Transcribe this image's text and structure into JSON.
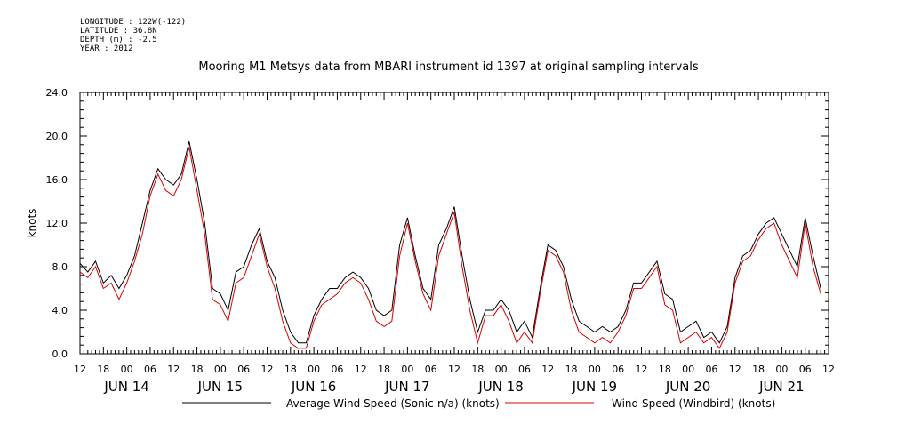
{
  "header": {
    "lines": [
      "LONGITUDE : 122W(-122)",
      "LATITUDE : 36.8N",
      "DEPTH (m) : -2.5",
      "YEAR : 2012"
    ],
    "title": "Mooring M1 Metsys data from MBARI instrument id 1397 at original sampling intervals"
  },
  "chart_data": {
    "type": "line",
    "title": "Mooring M1 Metsys data from MBARI instrument id 1397 at original sampling intervals",
    "ylabel": "knots",
    "xlabel": "",
    "ylim": [
      0,
      24
    ],
    "xlim_hours_from_jun14_00": [
      -12,
      180
    ],
    "y_ticks": [
      "0.0",
      "4.0",
      "8.0",
      "12.0",
      "16.0",
      "20.0",
      "24.0"
    ],
    "x_hour_ticks": [
      "12",
      "18",
      "00",
      "06",
      "12",
      "18",
      "00",
      "06",
      "12",
      "18",
      "00",
      "06",
      "12",
      "18",
      "00",
      "06",
      "12",
      "18",
      "00",
      "06",
      "12",
      "18",
      "00",
      "06",
      "12",
      "18",
      "00",
      "06",
      "12",
      "18",
      "00",
      "06",
      "12"
    ],
    "x_day_labels": [
      "JUN 14",
      "JUN 15",
      "JUN 16",
      "JUN 17",
      "JUN 18",
      "JUN 19",
      "JUN 20",
      "JUN 21"
    ],
    "grid": false,
    "legend_position": "bottom",
    "series": [
      {
        "name": "Average Wind Speed (Sonic-n/a) (knots)",
        "color": "#000000",
        "x": [
          -12,
          -10,
          -8,
          -6,
          -4,
          -2,
          0,
          2,
          4,
          6,
          8,
          10,
          12,
          14,
          16,
          18,
          20,
          22,
          24,
          26,
          28,
          30,
          32,
          34,
          36,
          38,
          40,
          42,
          44,
          46,
          48,
          50,
          52,
          54,
          56,
          58,
          60,
          62,
          64,
          66,
          68,
          70,
          72,
          74,
          76,
          78,
          80,
          82,
          84,
          86,
          88,
          90,
          92,
          94,
          96,
          98,
          100,
          102,
          104,
          106,
          108,
          110,
          112,
          114,
          116,
          118,
          120,
          122,
          124,
          126,
          128,
          130,
          132,
          134,
          136,
          138,
          140,
          142,
          144,
          146,
          148,
          150,
          152,
          154,
          156,
          158,
          160,
          162,
          164,
          166,
          168,
          170,
          172,
          174,
          176,
          178
        ],
        "values": [
          8.3,
          7.5,
          8.5,
          6.5,
          7.2,
          6.0,
          7.2,
          9.0,
          12.0,
          15.0,
          17.0,
          16.0,
          15.5,
          16.5,
          19.5,
          16.0,
          12.0,
          6.0,
          5.5,
          4.0,
          7.5,
          8.0,
          10.0,
          11.5,
          8.5,
          7.0,
          4.0,
          2.0,
          1.0,
          1.0,
          3.5,
          5.0,
          6.0,
          6.0,
          7.0,
          7.5,
          7.0,
          6.0,
          4.0,
          3.5,
          4.0,
          10.0,
          12.5,
          9.0,
          6.0,
          5.0,
          10.0,
          11.5,
          13.5,
          9.0,
          5.0,
          2.0,
          4.0,
          4.0,
          5.0,
          4.0,
          2.0,
          3.0,
          1.5,
          6.0,
          10.0,
          9.5,
          8.0,
          5.0,
          3.0,
          2.5,
          2.0,
          2.5,
          2.0,
          2.5,
          4.0,
          6.5,
          6.5,
          7.5,
          8.5,
          5.5,
          5.0,
          2.0,
          2.5,
          3.0,
          1.5,
          2.0,
          1.0,
          2.5,
          7.0,
          9.0,
          9.5,
          11.0,
          12.0,
          12.5,
          11.0,
          9.5,
          8.0,
          12.5,
          9.0,
          6.0
        ]
      },
      {
        "name": "Wind Speed (Windbird) (knots)",
        "color": "#dd0000",
        "x": [
          -12,
          -10,
          -8,
          -6,
          -4,
          -2,
          0,
          2,
          4,
          6,
          8,
          10,
          12,
          14,
          16,
          18,
          20,
          22,
          24,
          26,
          28,
          30,
          32,
          34,
          36,
          38,
          40,
          42,
          44,
          46,
          48,
          50,
          52,
          54,
          56,
          58,
          60,
          62,
          64,
          66,
          68,
          70,
          72,
          74,
          76,
          78,
          80,
          82,
          84,
          86,
          88,
          90,
          92,
          94,
          96,
          98,
          100,
          102,
          104,
          106,
          108,
          110,
          112,
          114,
          116,
          118,
          120,
          122,
          124,
          126,
          128,
          130,
          132,
          134,
          136,
          138,
          140,
          142,
          144,
          146,
          148,
          150,
          152,
          154,
          156,
          158,
          160,
          162,
          164,
          166,
          168,
          170,
          172,
          174,
          176,
          178
        ],
        "values": [
          7.5,
          7.0,
          8.0,
          6.0,
          6.5,
          5.0,
          6.5,
          8.5,
          11.0,
          14.5,
          16.5,
          15.0,
          14.5,
          16.0,
          19.0,
          15.0,
          11.0,
          5.0,
          4.5,
          3.0,
          6.5,
          7.0,
          9.0,
          11.0,
          8.0,
          6.0,
          3.0,
          1.0,
          0.5,
          0.5,
          3.0,
          4.5,
          5.0,
          5.5,
          6.5,
          7.0,
          6.5,
          5.0,
          3.0,
          2.5,
          3.0,
          9.0,
          12.0,
          8.5,
          5.5,
          4.0,
          9.0,
          11.0,
          13.0,
          8.0,
          4.0,
          1.0,
          3.5,
          3.5,
          4.5,
          3.0,
          1.0,
          2.0,
          1.0,
          5.5,
          9.5,
          9.0,
          7.5,
          4.0,
          2.0,
          1.5,
          1.0,
          1.5,
          1.0,
          2.0,
          3.5,
          6.0,
          6.0,
          7.0,
          8.0,
          4.5,
          4.0,
          1.0,
          1.5,
          2.0,
          1.0,
          1.5,
          0.5,
          2.0,
          6.5,
          8.5,
          9.0,
          10.5,
          11.5,
          12.0,
          10.0,
          8.5,
          7.0,
          12.0,
          8.0,
          5.5
        ]
      }
    ]
  }
}
